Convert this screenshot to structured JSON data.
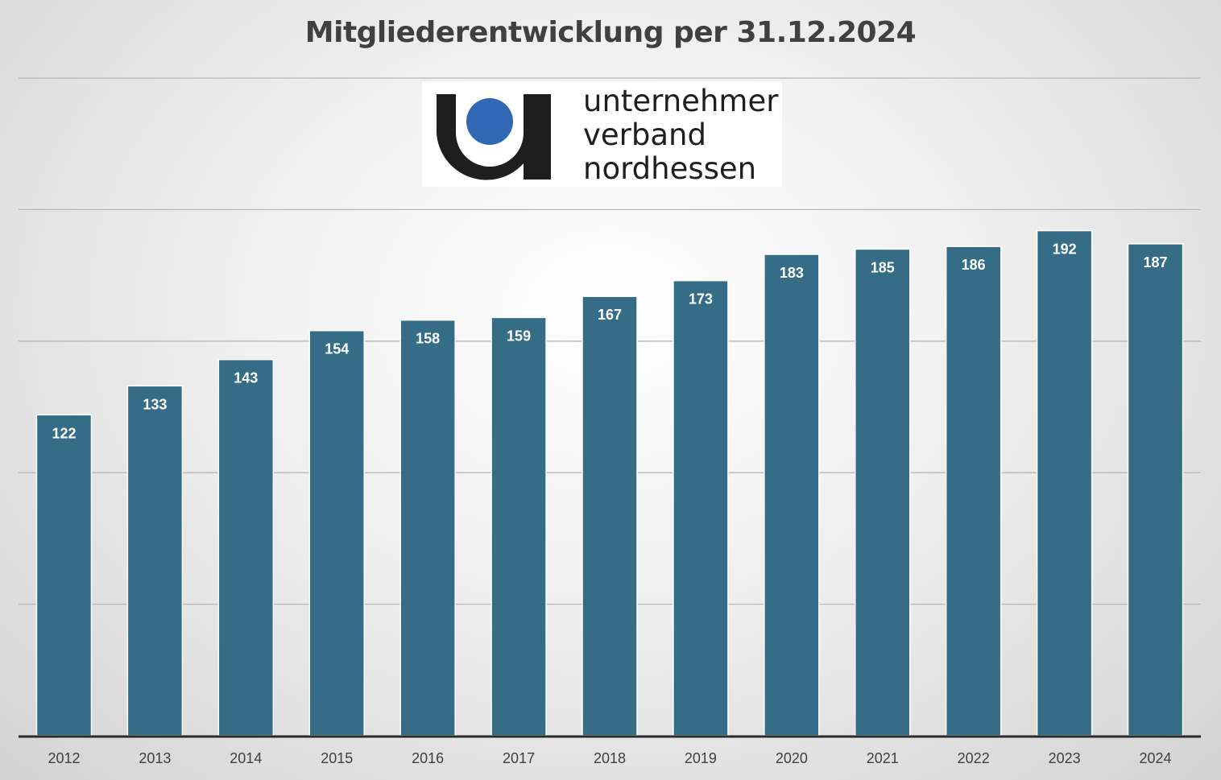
{
  "chart_data": {
    "type": "bar",
    "title": "Mitgliederentwicklung per 31.12.2024",
    "categories": [
      "2012",
      "2013",
      "2014",
      "2015",
      "2016",
      "2017",
      "2018",
      "2019",
      "2020",
      "2021",
      "2022",
      "2023",
      "2024"
    ],
    "values": [
      122,
      133,
      143,
      154,
      158,
      159,
      167,
      173,
      183,
      185,
      186,
      192,
      187
    ],
    "xlabel": "",
    "ylabel": "",
    "ylim": [
      0,
      250
    ],
    "grid": true,
    "legend": "none",
    "bar_color": "#2f6882",
    "label_color": "#ffffff"
  },
  "logo": {
    "lines": [
      "unternehmer",
      "verband",
      "nordhessen"
    ],
    "mark_color": "#1e1e1e",
    "dot_color": "#3068b5"
  }
}
